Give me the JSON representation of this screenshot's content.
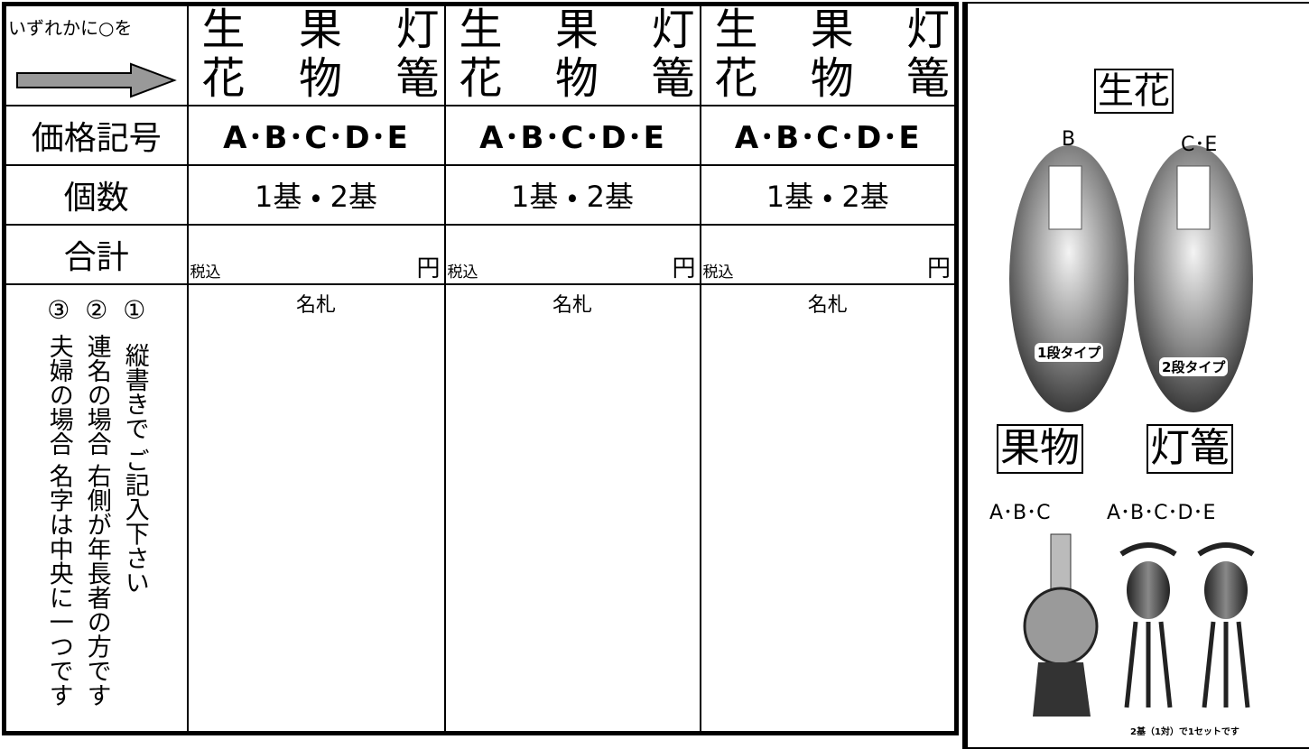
{
  "form": {
    "instruction": "いずれかに○を",
    "options": [
      "生花",
      "果物",
      "灯篭"
    ],
    "price_label": "価格記号",
    "price_value": "A･B･C･D･E",
    "count_label": "個数",
    "count_value": "1基 ・ 2基",
    "total_label": "合計",
    "total_prefix": "税込",
    "total_suffix": "円",
    "name_label": "名札",
    "notes": [
      {
        "number": "①",
        "text": "縦書きで ご記入下さい"
      },
      {
        "number": "②",
        "text": "連名の場合 右側が年長者の方です"
      },
      {
        "number": "③",
        "text": "夫婦の場合 名字は中央に一つです"
      }
    ]
  },
  "side": {
    "flower": {
      "title": "生花",
      "items": [
        {
          "code": "B",
          "caption": "1段タイプ"
        },
        {
          "code": "C･E",
          "caption": "2段タイプ"
        }
      ]
    },
    "fruit": {
      "title": "果物",
      "code": "A･B･C"
    },
    "lantern": {
      "title": "灯篭",
      "code": "A･B･C･D･E",
      "caption": "2基（1対）で1セットです"
    }
  }
}
